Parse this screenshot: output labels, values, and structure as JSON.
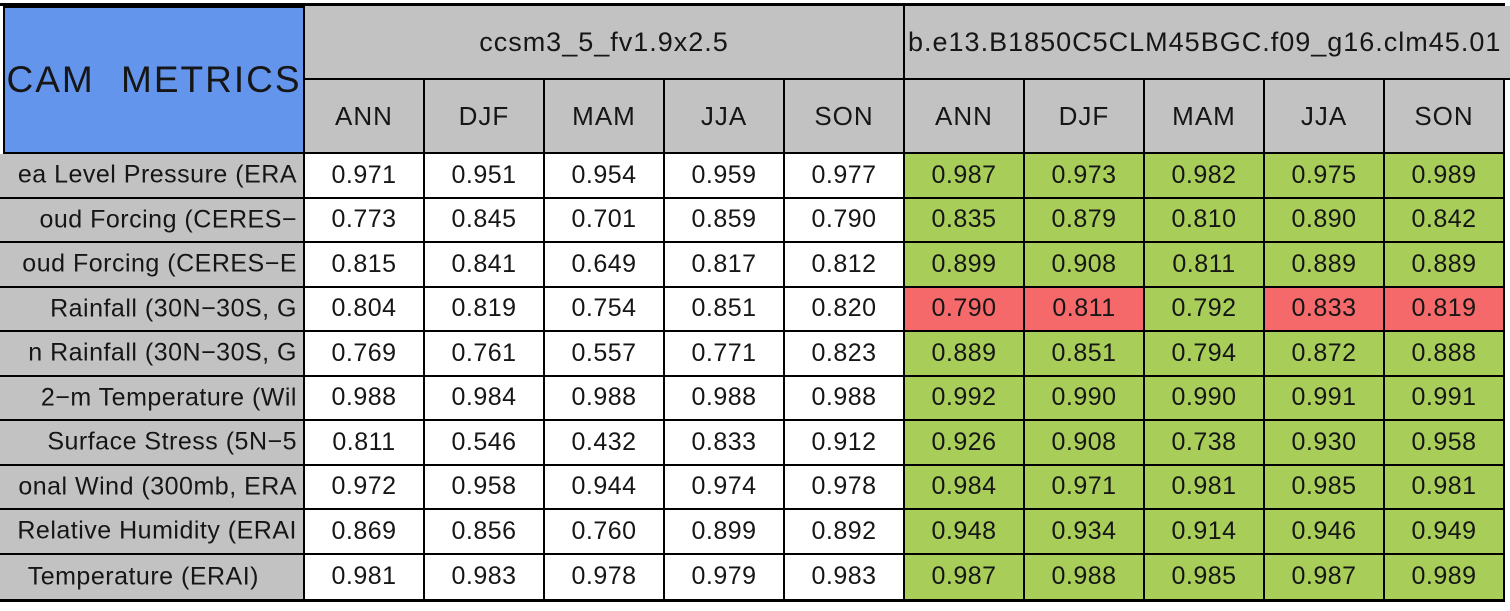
{
  "page": {
    "title": "CAM METRICS"
  },
  "colors": {
    "title_bg": "#6495ED",
    "header_bg": "#C2C2C2",
    "label_bg": "#C2C2C2",
    "improved_green": "#A8CE59",
    "degraded_red": "#F5696B",
    "neutral_white": "#FFFFFF",
    "border": "#000000"
  },
  "chart_data": {
    "type": "table",
    "title": "CAM METRICS",
    "column_groups": [
      {
        "label": "ccsm3_5_fv1.9x2.5",
        "columns": [
          "ANN",
          "DJF",
          "MAM",
          "JJA",
          "SON"
        ]
      },
      {
        "label": "b.e13.B1850C5CLM45BGC.f09_g16.clm45.01",
        "columns": [
          "ANN",
          "DJF",
          "MAM",
          "JJA",
          "SON"
        ]
      }
    ],
    "rows": [
      {
        "label": "ea Level Pressure (ERA",
        "model1_values": [
          "0.971",
          "0.951",
          "0.954",
          "0.959",
          "0.977"
        ],
        "model2_values": [
          "0.987",
          "0.973",
          "0.982",
          "0.975",
          "0.989"
        ],
        "model2_cell_colors": [
          "green",
          "green",
          "green",
          "green",
          "green"
        ]
      },
      {
        "label": "oud Forcing (CERES−",
        "model1_values": [
          "0.773",
          "0.845",
          "0.701",
          "0.859",
          "0.790"
        ],
        "model2_values": [
          "0.835",
          "0.879",
          "0.810",
          "0.890",
          "0.842"
        ],
        "model2_cell_colors": [
          "green",
          "green",
          "green",
          "green",
          "green"
        ]
      },
      {
        "label": "oud Forcing (CERES−E",
        "model1_values": [
          "0.815",
          "0.841",
          "0.649",
          "0.817",
          "0.812"
        ],
        "model2_values": [
          "0.899",
          "0.908",
          "0.811",
          "0.889",
          "0.889"
        ],
        "model2_cell_colors": [
          "green",
          "green",
          "green",
          "green",
          "green"
        ]
      },
      {
        "label": "Rainfall (30N−30S, G",
        "model1_values": [
          "0.804",
          "0.819",
          "0.754",
          "0.851",
          "0.820"
        ],
        "model2_values": [
          "0.790",
          "0.811",
          "0.792",
          "0.833",
          "0.819"
        ],
        "model2_cell_colors": [
          "red",
          "red",
          "green",
          "red",
          "red"
        ]
      },
      {
        "label": "n Rainfall (30N−30S, G",
        "model1_values": [
          "0.769",
          "0.761",
          "0.557",
          "0.771",
          "0.823"
        ],
        "model2_values": [
          "0.889",
          "0.851",
          "0.794",
          "0.872",
          "0.888"
        ],
        "model2_cell_colors": [
          "green",
          "green",
          "green",
          "green",
          "green"
        ]
      },
      {
        "label": "2−m Temperature (Wil",
        "model1_values": [
          "0.988",
          "0.984",
          "0.988",
          "0.988",
          "0.988"
        ],
        "model2_values": [
          "0.992",
          "0.990",
          "0.990",
          "0.991",
          "0.991"
        ],
        "model2_cell_colors": [
          "green",
          "green",
          "green",
          "green",
          "green"
        ]
      },
      {
        "label": "Surface Stress (5N−5",
        "model1_values": [
          "0.811",
          "0.546",
          "0.432",
          "0.833",
          "0.912"
        ],
        "model2_values": [
          "0.926",
          "0.908",
          "0.738",
          "0.930",
          "0.958"
        ],
        "model2_cell_colors": [
          "green",
          "green",
          "green",
          "green",
          "green"
        ]
      },
      {
        "label": "onal Wind (300mb, ERA",
        "model1_values": [
          "0.972",
          "0.958",
          "0.944",
          "0.974",
          "0.978"
        ],
        "model2_values": [
          "0.984",
          "0.971",
          "0.981",
          "0.985",
          "0.981"
        ],
        "model2_cell_colors": [
          "green",
          "green",
          "green",
          "green",
          "green"
        ]
      },
      {
        "label": "Relative Humidity (ERAI",
        "model1_values": [
          "0.869",
          "0.856",
          "0.760",
          "0.899",
          "0.892"
        ],
        "model2_values": [
          "0.948",
          "0.934",
          "0.914",
          "0.946",
          "0.949"
        ],
        "model2_cell_colors": [
          "green",
          "green",
          "green",
          "green",
          "green"
        ]
      },
      {
        "label": "Temperature (ERAI)",
        "model1_values": [
          "0.981",
          "0.983",
          "0.978",
          "0.979",
          "0.983"
        ],
        "model2_values": [
          "0.987",
          "0.988",
          "0.985",
          "0.987",
          "0.989"
        ],
        "model2_cell_colors": [
          "green",
          "green",
          "green",
          "green",
          "green"
        ]
      }
    ]
  }
}
